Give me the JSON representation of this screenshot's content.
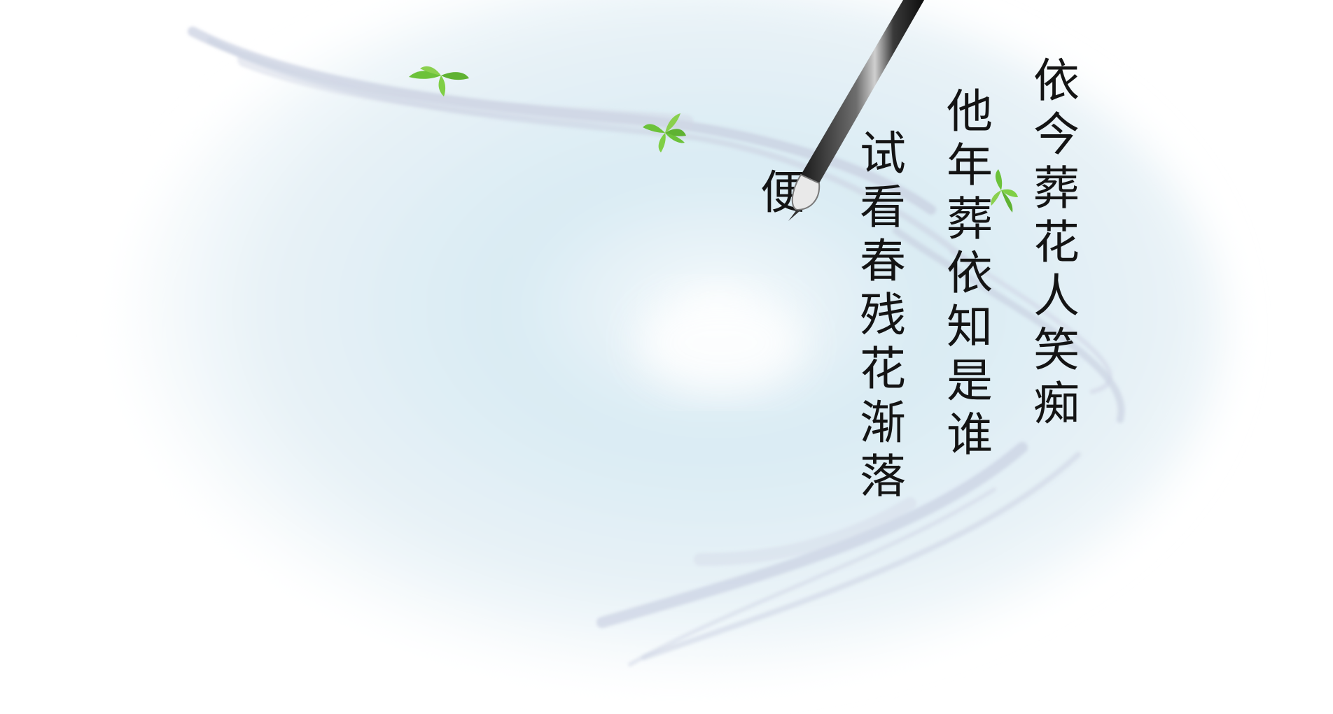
{
  "poem": {
    "lines": [
      "依今葬花人笑痴",
      "他年葬依知是谁",
      "试看春残花渐落",
      "便"
    ]
  },
  "decor": {
    "background_icon": "ink-wash-background",
    "brush_icon": "calligraphy-brush-icon",
    "leaf_icon": "bamboo-leaf-icon",
    "leaf_color": "#6cc23a",
    "wash_color": "#d6e9f2",
    "stroke_color": "#c4cde0"
  }
}
